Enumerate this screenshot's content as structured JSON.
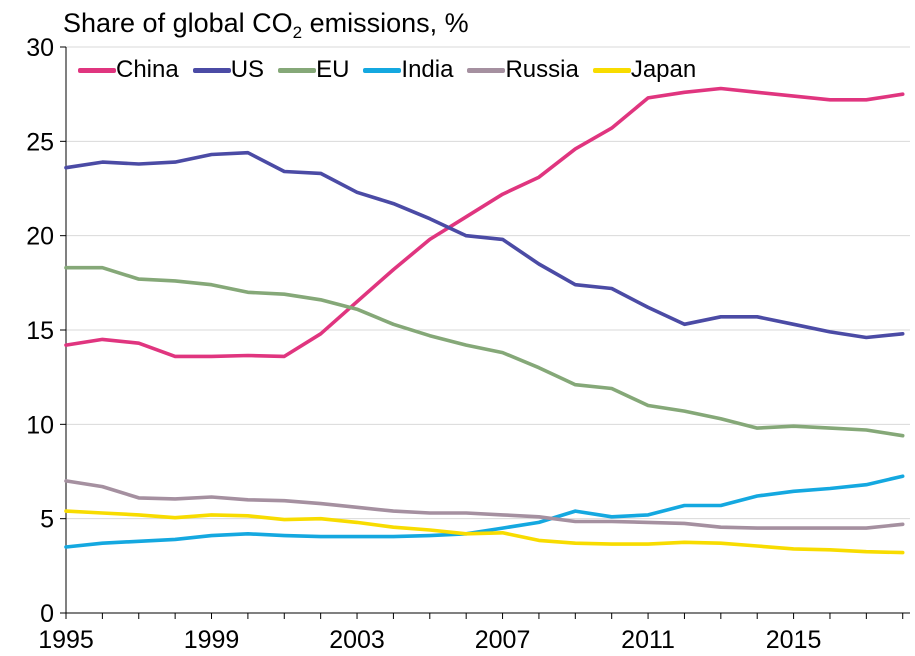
{
  "chart_data": {
    "type": "line",
    "title_main": "Share of global CO",
    "title_sub": "2",
    "title_tail": " emissions, %",
    "x": [
      1995,
      1996,
      1997,
      1998,
      1999,
      2000,
      2001,
      2002,
      2003,
      2004,
      2005,
      2006,
      2007,
      2008,
      2009,
      2010,
      2011,
      2012,
      2013,
      2014,
      2015,
      2016,
      2017,
      2018
    ],
    "xticks": [
      1995,
      1999,
      2003,
      2007,
      2011,
      2015
    ],
    "xlim": [
      1995,
      2018.2
    ],
    "ylim": [
      0,
      30
    ],
    "yticks": [
      0,
      5,
      10,
      15,
      20,
      25,
      30
    ],
    "grid": true,
    "legend_position": "top-left",
    "series": [
      {
        "name": "China",
        "color": "#e0357f",
        "values": [
          14.2,
          14.5,
          14.3,
          13.6,
          13.6,
          13.65,
          13.6,
          14.8,
          16.5,
          18.2,
          19.8,
          21.0,
          22.2,
          23.1,
          24.6,
          25.7,
          27.3,
          27.6,
          27.8,
          27.6,
          27.4,
          27.2,
          27.2,
          27.5
        ]
      },
      {
        "name": "US",
        "color": "#4b4ba5",
        "values": [
          23.6,
          23.9,
          23.8,
          23.9,
          24.3,
          24.4,
          23.4,
          23.3,
          22.3,
          21.7,
          20.9,
          20.0,
          19.8,
          18.5,
          17.4,
          17.2,
          16.2,
          15.3,
          15.7,
          15.7,
          15.3,
          14.9,
          14.6,
          14.8
        ]
      },
      {
        "name": "EU",
        "color": "#85a878",
        "values": [
          18.3,
          18.3,
          17.7,
          17.6,
          17.4,
          17.0,
          16.9,
          16.6,
          16.1,
          15.3,
          14.7,
          14.2,
          13.8,
          13.0,
          12.1,
          11.9,
          11.0,
          10.7,
          10.3,
          9.8,
          9.9,
          9.8,
          9.7,
          9.4
        ]
      },
      {
        "name": "India",
        "color": "#14a8e0",
        "values": [
          3.5,
          3.7,
          3.8,
          3.9,
          4.1,
          4.2,
          4.1,
          4.05,
          4.05,
          4.05,
          4.1,
          4.2,
          4.5,
          4.8,
          5.4,
          5.1,
          5.2,
          5.7,
          5.7,
          6.2,
          6.45,
          6.6,
          6.8,
          7.25
        ]
      },
      {
        "name": "Russia",
        "color": "#a590a0",
        "values": [
          7.0,
          6.7,
          6.1,
          6.05,
          6.15,
          6.0,
          5.95,
          5.8,
          5.6,
          5.4,
          5.3,
          5.3,
          5.2,
          5.1,
          4.85,
          4.85,
          4.8,
          4.75,
          4.55,
          4.5,
          4.5,
          4.5,
          4.5,
          4.7
        ]
      },
      {
        "name": "Japan",
        "color": "#f8dc00",
        "values": [
          5.4,
          5.3,
          5.2,
          5.05,
          5.2,
          5.15,
          4.95,
          5.0,
          4.8,
          4.55,
          4.4,
          4.2,
          4.25,
          3.85,
          3.7,
          3.65,
          3.65,
          3.75,
          3.7,
          3.55,
          3.4,
          3.35,
          3.25,
          3.2
        ]
      }
    ]
  }
}
